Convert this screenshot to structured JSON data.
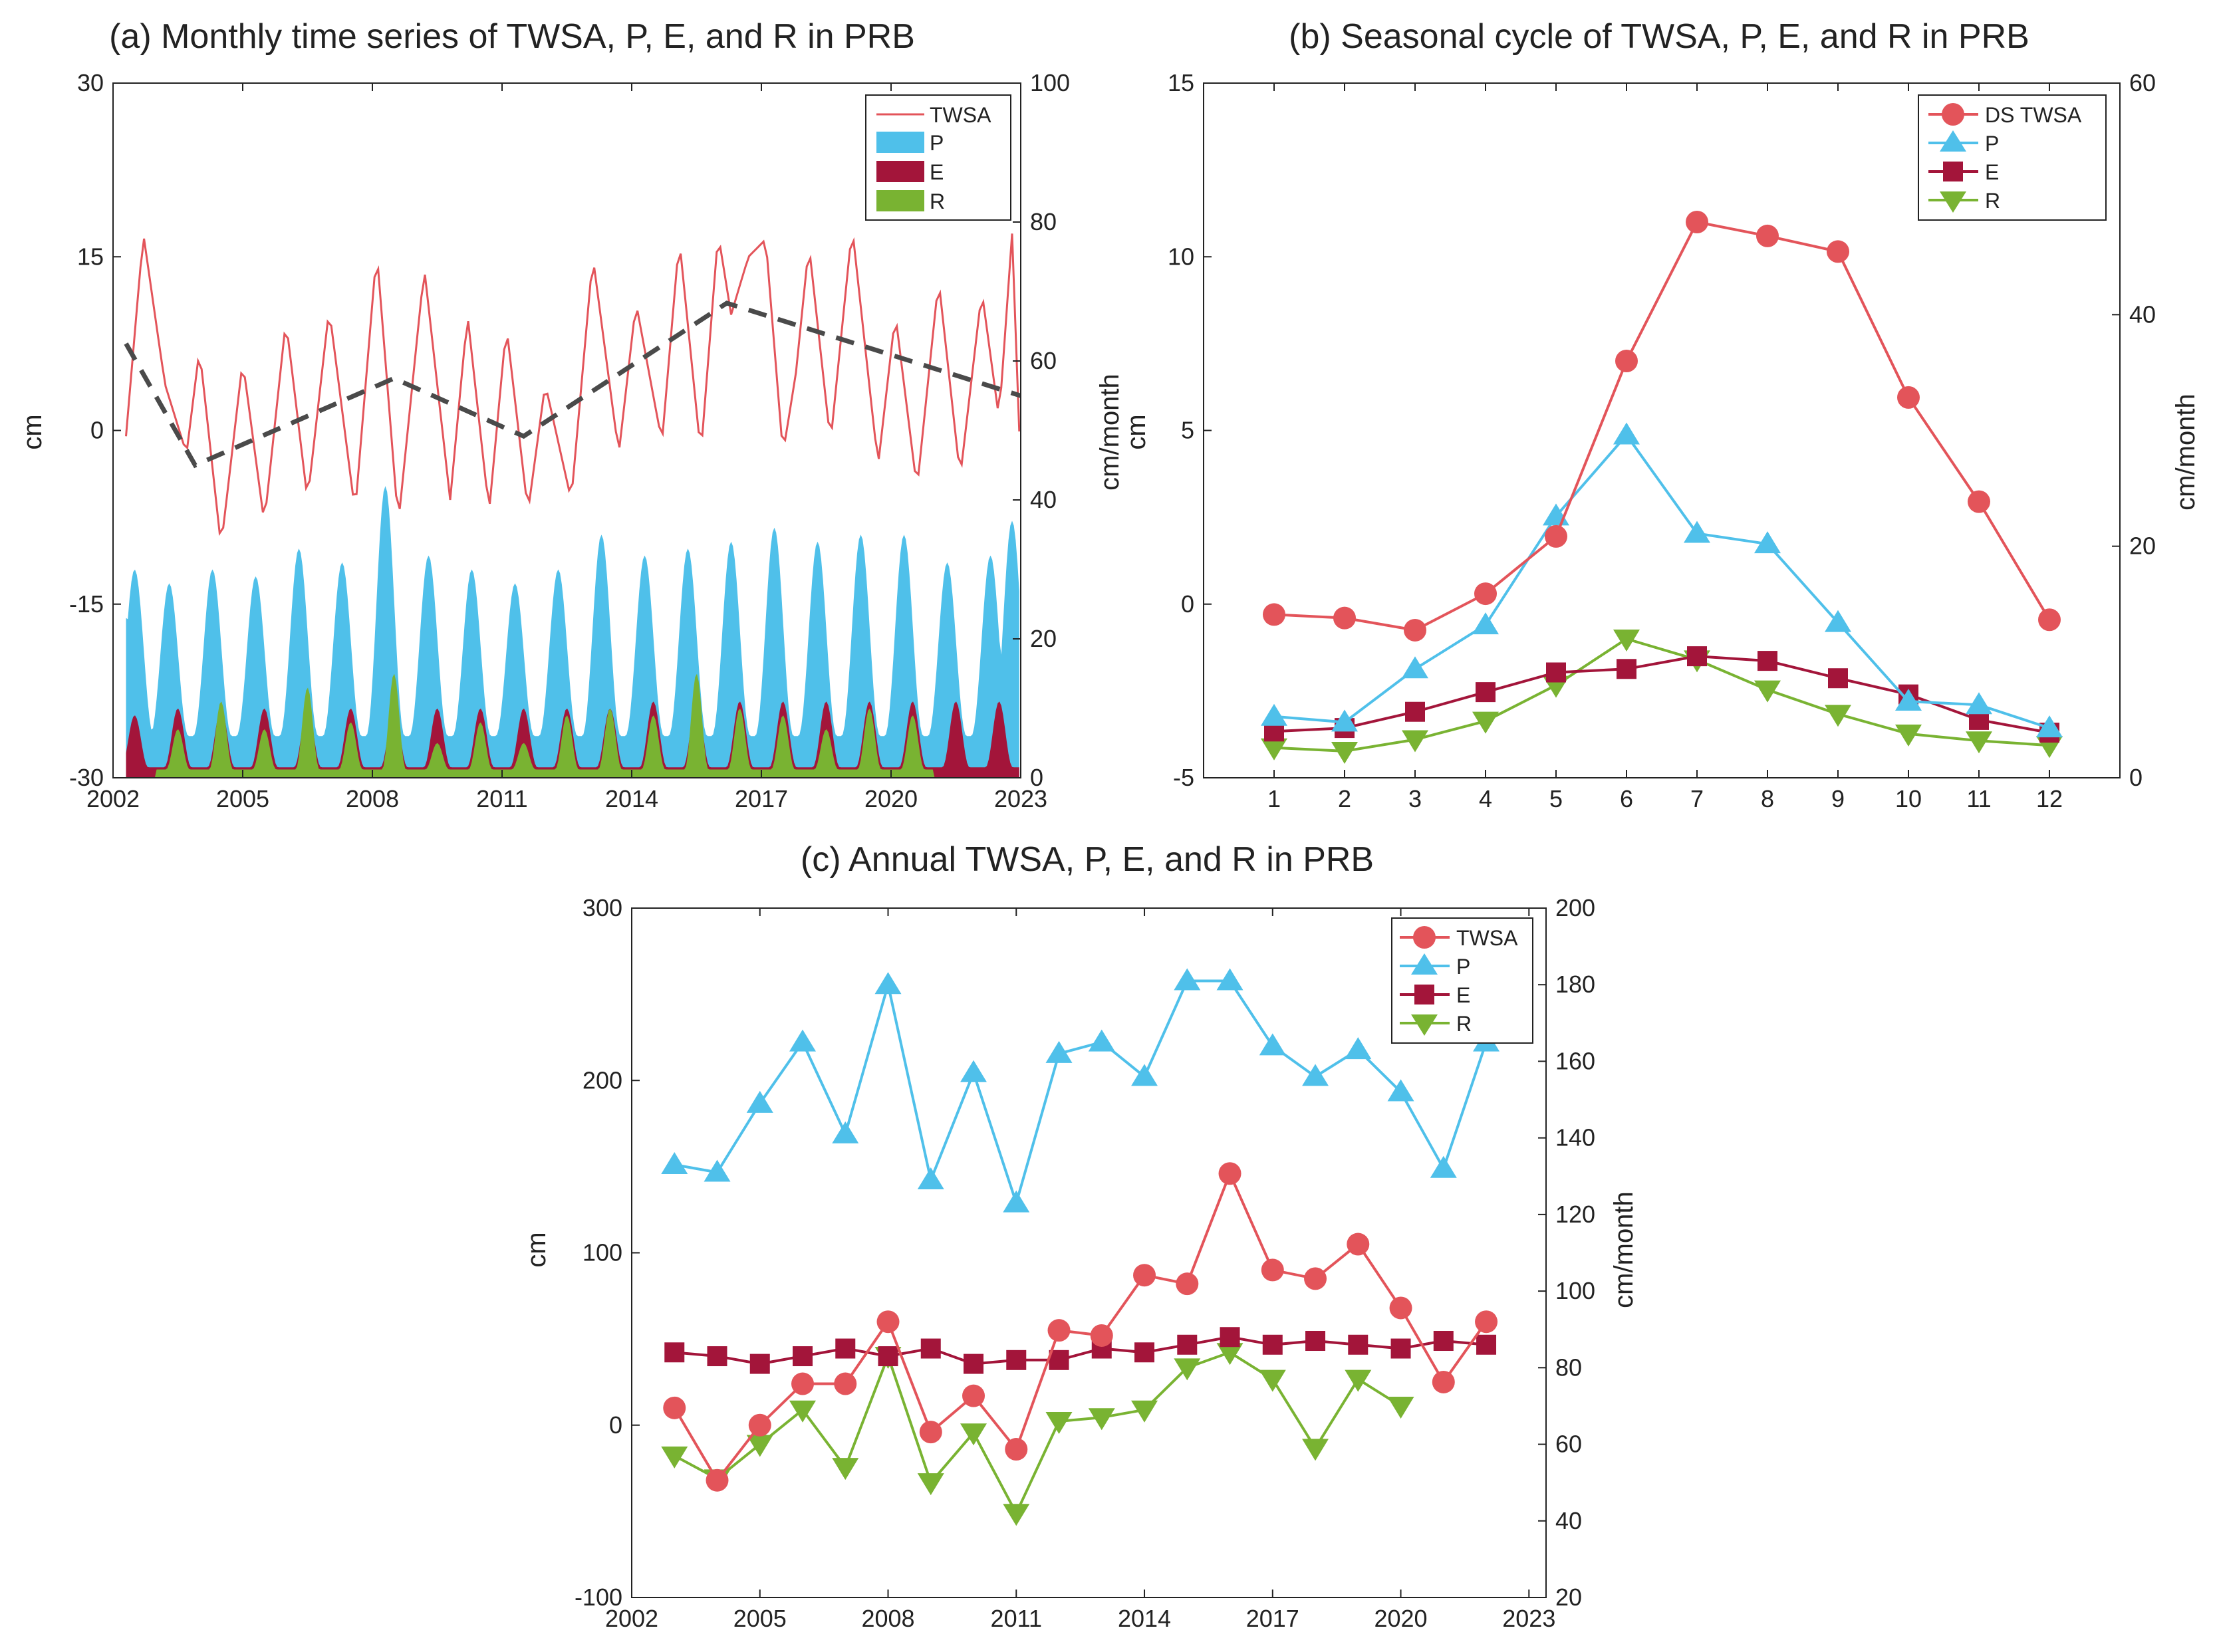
{
  "colors": {
    "twsa": "#e3545a",
    "p": "#4fc0ea",
    "e": "#a3153a",
    "r": "#79b332",
    "trend": "#4a4a4a",
    "axis": "#222222"
  },
  "chart_data": [
    {
      "id": "a",
      "type": "area",
      "title": "(a) Monthly time series of TWSA, P, E, and R in PRB",
      "xlabel": "",
      "ylabel_left": "cm",
      "ylabel_right": "cm/month",
      "xlim": [
        2002,
        2023
      ],
      "ylim_left": [
        -30,
        30
      ],
      "ylim_right": [
        0,
        100
      ],
      "xticks": [
        "2002",
        "2005",
        "2008",
        "2011",
        "2014",
        "2017",
        "2020",
        "2023"
      ],
      "yticks_left": [
        "30",
        "15",
        "0",
        "-15",
        "-30"
      ],
      "yticks_right": [
        "100",
        "80",
        "60",
        "40",
        "20",
        "0"
      ],
      "legend": [
        "TWSA",
        "P",
        "E",
        "R"
      ],
      "twsa_peaks": [
        [
          2002.3,
          -0.5
        ],
        [
          2002.7,
          17
        ],
        [
          2003.2,
          4
        ],
        [
          2003.7,
          -2
        ],
        [
          2004.0,
          7
        ],
        [
          2004.5,
          -10
        ],
        [
          2005.0,
          6
        ],
        [
          2005.5,
          -8
        ],
        [
          2006.0,
          9.5
        ],
        [
          2006.5,
          -6
        ],
        [
          2007.0,
          10.5
        ],
        [
          2007.6,
          -7
        ],
        [
          2008.1,
          15.5
        ],
        [
          2008.6,
          -8
        ],
        [
          2009.2,
          14
        ],
        [
          2009.8,
          -6
        ],
        [
          2010.2,
          10
        ],
        [
          2010.7,
          -7
        ],
        [
          2011.1,
          9
        ],
        [
          2011.6,
          -7
        ],
        [
          2012.0,
          4
        ],
        [
          2012.6,
          -6
        ],
        [
          2013.1,
          15
        ],
        [
          2013.7,
          -2
        ],
        [
          2014.1,
          11
        ],
        [
          2014.7,
          -1
        ],
        [
          2015.1,
          16.5
        ],
        [
          2015.6,
          -2
        ],
        [
          2016.0,
          17
        ],
        [
          2016.3,
          10
        ],
        [
          2016.7,
          15
        ],
        [
          2017.1,
          16.5
        ],
        [
          2017.5,
          -2
        ],
        [
          2017.8,
          5
        ],
        [
          2018.1,
          16
        ],
        [
          2018.6,
          -1
        ],
        [
          2019.1,
          17.5
        ],
        [
          2019.7,
          -3
        ],
        [
          2020.1,
          10
        ],
        [
          2020.6,
          -5
        ],
        [
          2021.1,
          13
        ],
        [
          2021.6,
          -4
        ],
        [
          2022.1,
          12
        ],
        [
          2022.5,
          1
        ],
        [
          2022.8,
          17
        ],
        [
          2023.0,
          -3.5
        ]
      ],
      "trend": {
        "x": [
          2002.3,
          2003.9,
          2008.5,
          2011.5,
          2016.2,
          2023.0
        ],
        "y": [
          7.5,
          -3,
          4.5,
          -0.5,
          11,
          3
        ]
      },
      "p_peaks_monthly": [
        [
          2002.3,
          23
        ],
        [
          2002.5,
          30
        ],
        [
          2003.3,
          28
        ],
        [
          2004.3,
          30
        ],
        [
          2005.3,
          29
        ],
        [
          2006.3,
          33
        ],
        [
          2007.3,
          31
        ],
        [
          2008.3,
          42
        ],
        [
          2009.3,
          32
        ],
        [
          2010.3,
          30
        ],
        [
          2011.3,
          28
        ],
        [
          2012.3,
          30
        ],
        [
          2013.3,
          35
        ],
        [
          2014.3,
          32
        ],
        [
          2015.3,
          33
        ],
        [
          2016.3,
          34
        ],
        [
          2017.3,
          36
        ],
        [
          2018.3,
          34
        ],
        [
          2019.3,
          35
        ],
        [
          2020.3,
          35
        ],
        [
          2021.3,
          31
        ],
        [
          2022.3,
          32
        ],
        [
          2022.8,
          37
        ]
      ],
      "e_peaks_monthly": [
        [
          2002.5,
          9
        ],
        [
          2003.5,
          10
        ],
        [
          2004.5,
          10
        ],
        [
          2005.5,
          10
        ],
        [
          2006.5,
          10
        ],
        [
          2007.5,
          10
        ],
        [
          2008.5,
          10
        ],
        [
          2009.5,
          10
        ],
        [
          2010.5,
          10
        ],
        [
          2011.5,
          10
        ],
        [
          2012.5,
          10
        ],
        [
          2013.5,
          10
        ],
        [
          2014.5,
          11
        ],
        [
          2015.5,
          11
        ],
        [
          2016.5,
          11
        ],
        [
          2017.5,
          11
        ],
        [
          2018.5,
          11
        ],
        [
          2019.5,
          11
        ],
        [
          2020.5,
          11
        ],
        [
          2021.5,
          11
        ],
        [
          2022.5,
          11
        ]
      ],
      "r_peaks_monthly": [
        [
          2003.5,
          7
        ],
        [
          2004.5,
          11
        ],
        [
          2005.5,
          7
        ],
        [
          2006.5,
          13
        ],
        [
          2007.5,
          8
        ],
        [
          2008.5,
          15
        ],
        [
          2009.5,
          5
        ],
        [
          2010.5,
          8
        ],
        [
          2011.5,
          5
        ],
        [
          2012.5,
          9
        ],
        [
          2013.5,
          10
        ],
        [
          2014.5,
          9
        ],
        [
          2015.5,
          15
        ],
        [
          2016.5,
          10
        ],
        [
          2017.5,
          9
        ],
        [
          2018.5,
          7
        ],
        [
          2019.5,
          10
        ],
        [
          2020.5,
          9
        ]
      ]
    },
    {
      "id": "b",
      "type": "line",
      "title": "(b) Seasonal cycle of TWSA, P, E, and R in PRB",
      "xlabel": "",
      "ylabel_left": "cm",
      "ylabel_right": "cm/month",
      "xlim": [
        0,
        13
      ],
      "ylim_left": [
        -5,
        15
      ],
      "ylim_right": [
        0,
        60
      ],
      "categories": [
        "1",
        "2",
        "3",
        "4",
        "5",
        "6",
        "7",
        "8",
        "9",
        "10",
        "11",
        "12"
      ],
      "yticks_left": [
        "15",
        "10",
        "5",
        "0",
        "-5"
      ],
      "yticks_right": [
        "60",
        "40",
        "20",
        "0"
      ],
      "series": [
        {
          "name": "DS TWSA",
          "axis": "left",
          "values": [
            -0.3,
            -0.4,
            -0.75,
            0.3,
            1.95,
            7.0,
            11.0,
            10.6,
            10.15,
            5.95,
            2.95,
            -0.45
          ]
        },
        {
          "name": "P",
          "axis": "right",
          "values": [
            5.3,
            4.8,
            9.4,
            13.2,
            22.6,
            29.6,
            21.1,
            20.2,
            13.4,
            6.6,
            6.3,
            4.3
          ]
        },
        {
          "name": "E",
          "axis": "right",
          "values": [
            4.0,
            4.3,
            5.7,
            7.4,
            9.1,
            9.4,
            10.5,
            10.1,
            8.6,
            7.2,
            5.0,
            3.9
          ]
        },
        {
          "name": "R",
          "axis": "right",
          "values": [
            2.6,
            2.3,
            3.3,
            4.9,
            8.0,
            12.0,
            10.2,
            7.6,
            5.5,
            3.8,
            3.2,
            2.8
          ]
        }
      ]
    },
    {
      "id": "c",
      "type": "line",
      "title": "(c) Annual TWSA, P, E, and R in PRB",
      "xlabel": "",
      "ylabel_left": "cm",
      "ylabel_right": "cm/month",
      "xlim": [
        2002,
        2023.4
      ],
      "ylim_left": [
        -100,
        300
      ],
      "ylim_right": [
        20,
        200
      ],
      "xticks": [
        "2002",
        "2005",
        "2008",
        "2011",
        "2014",
        "2017",
        "2020",
        "2023"
      ],
      "yticks_left": [
        "300",
        "200",
        "100",
        "0",
        "-100"
      ],
      "yticks_right": [
        "200",
        "180",
        "160",
        "140",
        "120",
        "100",
        "80",
        "60",
        "40",
        "20"
      ],
      "x": [
        2003,
        2004,
        2005,
        2006,
        2007,
        2008,
        2009,
        2010,
        2011,
        2012,
        2013,
        2014,
        2015,
        2016,
        2017,
        2018,
        2019,
        2020,
        2021,
        2022
      ],
      "series": [
        {
          "name": "TWSA",
          "axis": "left",
          "values": [
            10,
            -32,
            0,
            24,
            24,
            60,
            -4,
            17,
            -14,
            55,
            52,
            87,
            82,
            146,
            90,
            85,
            105,
            68,
            25,
            60
          ]
        },
        {
          "name": "P",
          "axis": "right",
          "values": [
            133,
            131,
            149,
            165,
            141,
            180,
            129,
            157,
            123,
            162,
            165,
            156,
            181,
            181,
            164,
            156,
            163,
            152,
            132,
            165
          ]
        },
        {
          "name": "E",
          "axis": "right",
          "values": [
            84,
            83,
            81,
            83,
            85,
            83,
            85,
            81,
            82,
            82,
            85,
            84,
            86,
            88,
            86,
            87,
            86,
            85,
            87,
            86
          ]
        },
        {
          "name": "R",
          "axis": "right",
          "values": [
            57,
            51,
            60,
            69,
            54,
            83,
            50,
            63,
            42,
            66,
            67,
            69,
            80,
            84,
            77,
            59,
            77,
            70,
            null,
            null
          ]
        }
      ]
    }
  ]
}
